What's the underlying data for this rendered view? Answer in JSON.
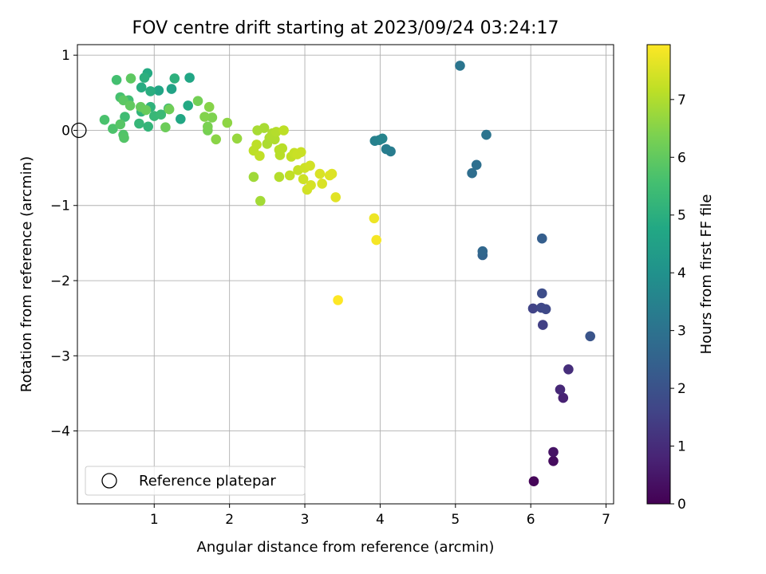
{
  "chart_data": {
    "type": "scatter",
    "title": "FOV centre drift starting at 2023/09/24 03:24:17",
    "xlabel": "Angular distance from reference (arcmin)",
    "ylabel": "Rotation from reference (arcmin)",
    "xlim": [
      -0.02,
      7.1
    ],
    "ylim": [
      -4.97,
      1.14
    ],
    "xticks": [
      1,
      2,
      3,
      4,
      5,
      6,
      7
    ],
    "yticks": [
      1,
      0,
      -1,
      -2,
      -3,
      -4
    ],
    "xtick_labels": [
      "1",
      "2",
      "3",
      "4",
      "5",
      "6",
      "7"
    ],
    "ytick_labels": [
      "1",
      "0",
      "−1",
      "−2",
      "−3",
      "−4"
    ],
    "grid": true,
    "legend": {
      "placement": "lower-left",
      "entries": [
        "Reference platepar"
      ]
    },
    "reference_point": {
      "x": 0,
      "y": 0,
      "label": "Reference platepar"
    },
    "colorbar": {
      "label": "Hours from first FF file",
      "range": [
        0,
        7.95
      ],
      "ticks": [
        0,
        1,
        2,
        3,
        4,
        5,
        6,
        7
      ],
      "tick_labels": [
        "0",
        "1",
        "2",
        "3",
        "4",
        "5",
        "6",
        "7"
      ],
      "colormap": "viridis"
    },
    "points": [
      {
        "x": 6.04,
        "y": -4.67,
        "h": 0.1
      },
      {
        "x": 6.3,
        "y": -4.4,
        "h": 0.25
      },
      {
        "x": 6.3,
        "y": -4.28,
        "h": 0.4
      },
      {
        "x": 6.43,
        "y": -3.56,
        "h": 0.75
      },
      {
        "x": 6.39,
        "y": -3.45,
        "h": 0.9
      },
      {
        "x": 6.5,
        "y": -3.18,
        "h": 1.05
      },
      {
        "x": 6.16,
        "y": -2.59,
        "h": 1.5
      },
      {
        "x": 6.03,
        "y": -2.37,
        "h": 1.6
      },
      {
        "x": 6.14,
        "y": -2.36,
        "h": 1.7
      },
      {
        "x": 6.2,
        "y": -2.38,
        "h": 1.75
      },
      {
        "x": 6.15,
        "y": -2.17,
        "h": 1.85
      },
      {
        "x": 6.79,
        "y": -2.74,
        "h": 2.05
      },
      {
        "x": 6.15,
        "y": -1.44,
        "h": 2.4
      },
      {
        "x": 5.36,
        "y": -1.66,
        "h": 2.55
      },
      {
        "x": 5.36,
        "y": -1.61,
        "h": 2.65
      },
      {
        "x": 5.22,
        "y": -0.57,
        "h": 2.85
      },
      {
        "x": 5.28,
        "y": -0.46,
        "h": 2.9
      },
      {
        "x": 5.41,
        "y": -0.06,
        "h": 3.05
      },
      {
        "x": 5.06,
        "y": 0.86,
        "h": 3.1
      },
      {
        "x": 4.14,
        "y": -0.28,
        "h": 3.3
      },
      {
        "x": 4.08,
        "y": -0.25,
        "h": 3.35
      },
      {
        "x": 3.93,
        "y": -0.14,
        "h": 3.45
      },
      {
        "x": 3.99,
        "y": -0.13,
        "h": 3.5
      },
      {
        "x": 4.03,
        "y": -0.11,
        "h": 3.55
      },
      {
        "x": 1.23,
        "y": 0.55,
        "h": 4.6
      },
      {
        "x": 1.06,
        "y": 0.53,
        "h": 4.65
      },
      {
        "x": 1.47,
        "y": 0.7,
        "h": 4.7
      },
      {
        "x": 1.35,
        "y": 0.15,
        "h": 4.75
      },
      {
        "x": 1.45,
        "y": 0.33,
        "h": 4.8
      },
      {
        "x": 0.91,
        "y": 0.76,
        "h": 4.85
      },
      {
        "x": 0.83,
        "y": 0.57,
        "h": 4.9
      },
      {
        "x": 0.95,
        "y": 0.52,
        "h": 4.95
      },
      {
        "x": 0.87,
        "y": 0.7,
        "h": 5.0
      },
      {
        "x": 1.27,
        "y": 0.69,
        "h": 5.05
      },
      {
        "x": 0.95,
        "y": 0.31,
        "h": 5.1
      },
      {
        "x": 0.83,
        "y": 0.25,
        "h": 5.15
      },
      {
        "x": 0.92,
        "y": 0.05,
        "h": 5.2
      },
      {
        "x": 0.8,
        "y": 0.09,
        "h": 5.25
      },
      {
        "x": 1.0,
        "y": 0.19,
        "h": 5.3
      },
      {
        "x": 1.09,
        "y": 0.21,
        "h": 5.35
      },
      {
        "x": 1.19,
        "y": 0.29,
        "h": 5.4
      },
      {
        "x": 0.61,
        "y": 0.18,
        "h": 5.45
      },
      {
        "x": 0.66,
        "y": 0.4,
        "h": 5.5
      },
      {
        "x": 0.5,
        "y": 0.67,
        "h": 5.55
      },
      {
        "x": 0.55,
        "y": 0.44,
        "h": 5.6
      },
      {
        "x": 0.34,
        "y": 0.14,
        "h": 5.65
      },
      {
        "x": 0.45,
        "y": 0.02,
        "h": 5.7
      },
      {
        "x": 0.59,
        "y": -0.06,
        "h": 5.75
      },
      {
        "x": 0.6,
        "y": -0.1,
        "h": 5.8
      },
      {
        "x": 0.55,
        "y": 0.08,
        "h": 5.85
      },
      {
        "x": 0.59,
        "y": 0.4,
        "h": 5.9
      },
      {
        "x": 0.69,
        "y": 0.69,
        "h": 5.95
      },
      {
        "x": 0.68,
        "y": 0.33,
        "h": 6.0
      },
      {
        "x": 0.82,
        "y": 0.31,
        "h": 6.05
      },
      {
        "x": 0.89,
        "y": 0.27,
        "h": 6.1
      },
      {
        "x": 1.15,
        "y": 0.04,
        "h": 6.15
      },
      {
        "x": 1.2,
        "y": 0.28,
        "h": 6.2
      },
      {
        "x": 1.58,
        "y": 0.39,
        "h": 6.25
      },
      {
        "x": 1.71,
        "y": 0.0,
        "h": 6.3
      },
      {
        "x": 1.71,
        "y": 0.05,
        "h": 6.35
      },
      {
        "x": 1.77,
        "y": 0.17,
        "h": 6.4
      },
      {
        "x": 1.67,
        "y": 0.18,
        "h": 6.45
      },
      {
        "x": 1.73,
        "y": 0.31,
        "h": 6.5
      },
      {
        "x": 1.82,
        "y": -0.12,
        "h": 6.55
      },
      {
        "x": 1.97,
        "y": 0.1,
        "h": 6.6
      },
      {
        "x": 2.1,
        "y": -0.11,
        "h": 6.7
      },
      {
        "x": 2.32,
        "y": -0.62,
        "h": 6.8
      },
      {
        "x": 2.41,
        "y": -0.94,
        "h": 6.85
      },
      {
        "x": 2.37,
        "y": 0.0,
        "h": 6.9
      },
      {
        "x": 2.46,
        "y": 0.03,
        "h": 6.9
      },
      {
        "x": 2.5,
        "y": -0.18,
        "h": 6.95
      },
      {
        "x": 2.53,
        "y": -0.1,
        "h": 6.95
      },
      {
        "x": 2.56,
        "y": -0.08,
        "h": 7.0
      },
      {
        "x": 2.57,
        "y": -0.04,
        "h": 7.0
      },
      {
        "x": 2.6,
        "y": -0.12,
        "h": 7.0
      },
      {
        "x": 2.62,
        "y": -0.02,
        "h": 7.05
      },
      {
        "x": 2.66,
        "y": -0.62,
        "h": 7.05
      },
      {
        "x": 2.67,
        "y": -0.33,
        "h": 7.1
      },
      {
        "x": 2.66,
        "y": -0.26,
        "h": 7.1
      },
      {
        "x": 2.7,
        "y": -0.24,
        "h": 7.1
      },
      {
        "x": 2.72,
        "y": 0.0,
        "h": 7.15
      },
      {
        "x": 2.32,
        "y": -0.27,
        "h": 7.15
      },
      {
        "x": 2.36,
        "y": -0.19,
        "h": 7.15
      },
      {
        "x": 2.4,
        "y": -0.34,
        "h": 7.2
      },
      {
        "x": 2.8,
        "y": -0.6,
        "h": 7.2
      },
      {
        "x": 2.82,
        "y": -0.35,
        "h": 7.2
      },
      {
        "x": 2.86,
        "y": -0.3,
        "h": 7.25
      },
      {
        "x": 2.91,
        "y": -0.53,
        "h": 7.25
      },
      {
        "x": 2.9,
        "y": -0.32,
        "h": 7.3
      },
      {
        "x": 2.95,
        "y": -0.29,
        "h": 7.3
      },
      {
        "x": 2.98,
        "y": -0.65,
        "h": 7.35
      },
      {
        "x": 3.0,
        "y": -0.5,
        "h": 7.35
      },
      {
        "x": 3.03,
        "y": -0.79,
        "h": 7.4
      },
      {
        "x": 3.07,
        "y": -0.47,
        "h": 7.4
      },
      {
        "x": 3.08,
        "y": -0.73,
        "h": 7.45
      },
      {
        "x": 3.2,
        "y": -0.58,
        "h": 7.5
      },
      {
        "x": 3.23,
        "y": -0.71,
        "h": 7.5
      },
      {
        "x": 3.33,
        "y": -0.6,
        "h": 7.55
      },
      {
        "x": 3.36,
        "y": -0.58,
        "h": 7.55
      },
      {
        "x": 3.41,
        "y": -0.89,
        "h": 7.6
      },
      {
        "x": 3.92,
        "y": -1.17,
        "h": 7.75
      },
      {
        "x": 3.95,
        "y": -1.46,
        "h": 7.85
      },
      {
        "x": 3.44,
        "y": -2.26,
        "h": 7.95
      }
    ]
  }
}
